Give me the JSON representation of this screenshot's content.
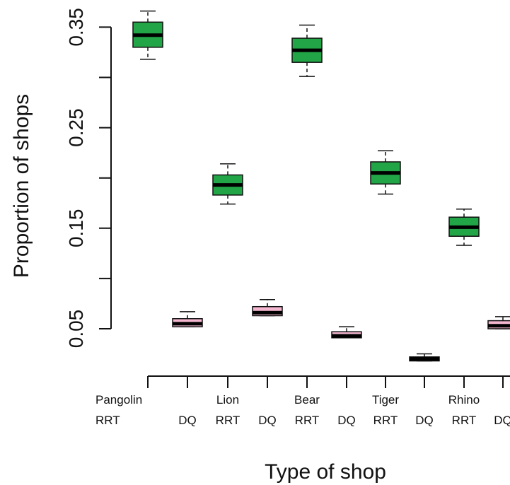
{
  "chart_data": {
    "type": "boxplot",
    "xlabel": "Type of shop",
    "ylabel": "Proportion of shops",
    "ylim": [
      0.0,
      0.365
    ],
    "y_ticks": [
      "0.05",
      "0.15",
      "0.25",
      "0.35"
    ],
    "y_ticks_unlabeled": [
      0.1,
      0.2,
      0.3
    ],
    "groups": [
      {
        "name": "Pangolin",
        "sublabel": "RRT",
        "type": "RRT",
        "whisker_low": 0.318,
        "q1": 0.33,
        "median": 0.342,
        "q3": 0.355,
        "whisker_high": 0.366
      },
      {
        "name": "",
        "sublabel": "DQ",
        "type": "DQ",
        "whisker_low": 0.052,
        "q1": 0.052,
        "median": 0.055,
        "q3": 0.06,
        "whisker_high": 0.067
      },
      {
        "name": "Lion",
        "sublabel": "RRT",
        "type": "RRT",
        "whisker_low": 0.174,
        "q1": 0.183,
        "median": 0.193,
        "q3": 0.203,
        "whisker_high": 0.214
      },
      {
        "name": "",
        "sublabel": "DQ",
        "type": "DQ",
        "whisker_low": 0.063,
        "q1": 0.063,
        "median": 0.066,
        "q3": 0.072,
        "whisker_high": 0.079
      },
      {
        "name": "Bear",
        "sublabel": "RRT",
        "type": "RRT",
        "whisker_low": 0.301,
        "q1": 0.315,
        "median": 0.327,
        "q3": 0.339,
        "whisker_high": 0.352
      },
      {
        "name": "",
        "sublabel": "DQ",
        "type": "DQ",
        "whisker_low": 0.041,
        "q1": 0.041,
        "median": 0.043,
        "q3": 0.047,
        "whisker_high": 0.052
      },
      {
        "name": "Tiger",
        "sublabel": "RRT",
        "type": "RRT",
        "whisker_low": 0.184,
        "q1": 0.194,
        "median": 0.205,
        "q3": 0.216,
        "whisker_high": 0.227
      },
      {
        "name": "",
        "sublabel": "DQ",
        "type": "DQ",
        "whisker_low": 0.018,
        "q1": 0.018,
        "median": 0.02,
        "q3": 0.022,
        "whisker_high": 0.025
      },
      {
        "name": "Rhino",
        "sublabel": "RRT",
        "type": "RRT",
        "whisker_low": 0.133,
        "q1": 0.142,
        "median": 0.151,
        "q3": 0.161,
        "whisker_high": 0.169
      },
      {
        "name": "",
        "sublabel": "DQ",
        "type": "DQ",
        "whisker_low": 0.05,
        "q1": 0.05,
        "median": 0.053,
        "q3": 0.058,
        "whisker_high": 0.062
      }
    ],
    "colors": {
      "RRT": "#22a546",
      "DQ": "#f4b6cf",
      "median": "#000000"
    },
    "grid": false,
    "legend": "none"
  }
}
